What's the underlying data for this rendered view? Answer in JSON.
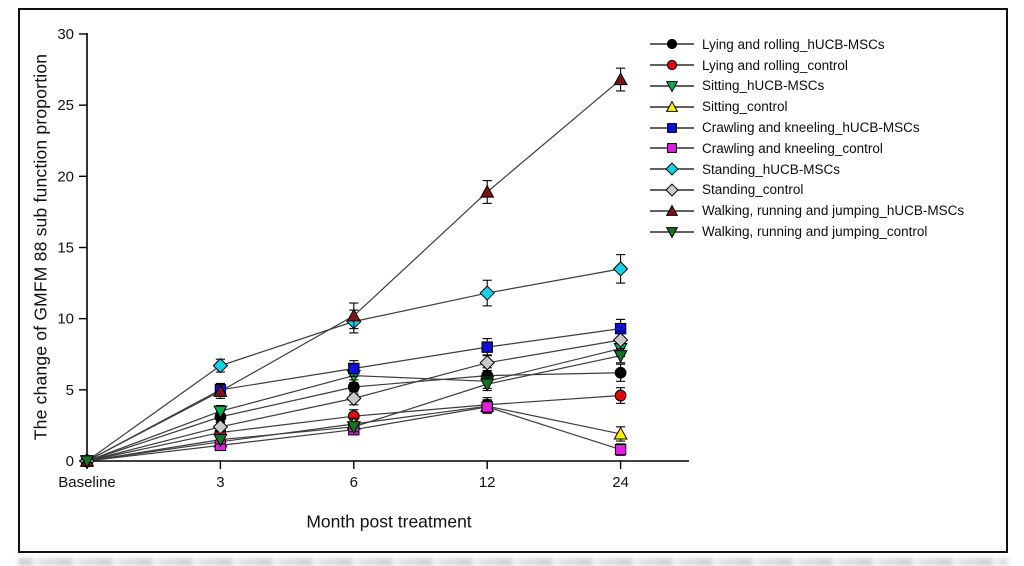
{
  "chart_data": {
    "type": "line",
    "title": "",
    "xlabel": "Month post treatment",
    "ylabel": "The change of GMFM 88 sub function proportion",
    "x_categories": [
      "Baseline",
      "3",
      "6",
      "12",
      "24"
    ],
    "y_ticks": [
      0,
      5,
      10,
      15,
      20,
      25,
      30
    ],
    "ylim": [
      0,
      30
    ],
    "grid": false,
    "error_bars": true,
    "legend_position": "top-right",
    "line_color": "#3d3d3d",
    "series": [
      {
        "name": "Lying and rolling_hUCB-MSCs",
        "marker": "circle",
        "color": "#000000",
        "values": [
          0,
          3.1,
          5.2,
          6.0,
          6.2
        ],
        "errors": [
          0,
          0.4,
          0.5,
          0.55,
          0.6
        ]
      },
      {
        "name": "Lying and rolling_control",
        "marker": "circle",
        "color": "#dd0a0a",
        "values": [
          0,
          2.0,
          3.15,
          3.95,
          4.6
        ],
        "errors": [
          0,
          0.35,
          0.45,
          0.5,
          0.55
        ]
      },
      {
        "name": "Sitting_hUCB-MSCs",
        "marker": "triangle-down",
        "color": "#00b050",
        "values": [
          0,
          3.5,
          6.0,
          5.6,
          7.9
        ],
        "errors": [
          0,
          0.4,
          0.5,
          0.5,
          0.55
        ]
      },
      {
        "name": "Sitting_control",
        "marker": "triangle-up",
        "color": "#ffee00",
        "values": [
          0,
          1.35,
          2.6,
          3.85,
          1.9
        ],
        "errors": [
          0,
          0.3,
          0.4,
          0.45,
          0.5
        ]
      },
      {
        "name": "Crawling and kneeling_hUCB-MSCs",
        "marker": "square",
        "color": "#1010d0",
        "values": [
          0,
          5.0,
          6.5,
          8.0,
          9.3
        ],
        "errors": [
          0,
          0.45,
          0.55,
          0.6,
          0.65
        ]
      },
      {
        "name": "Crawling and kneeling_control",
        "marker": "square",
        "color": "#dd22dd",
        "values": [
          0,
          1.1,
          2.2,
          3.8,
          0.8
        ],
        "errors": [
          0,
          0.3,
          0.35,
          0.45,
          0.4
        ]
      },
      {
        "name": "Standing_hUCB-MSCs",
        "marker": "diamond",
        "color": "#18d1e7",
        "values": [
          0,
          6.7,
          9.8,
          11.8,
          13.5
        ],
        "errors": [
          0,
          0.45,
          0.8,
          0.9,
          1.0
        ]
      },
      {
        "name": "Standing_control",
        "marker": "diamond",
        "color": "#c9c9c9",
        "values": [
          0,
          2.4,
          4.4,
          6.9,
          8.5
        ],
        "errors": [
          0,
          0.35,
          0.45,
          0.55,
          0.6
        ]
      },
      {
        "name": "Walking, running and jumping_hUCB-MSCs",
        "marker": "triangle-up",
        "color": "#7b1418",
        "values": [
          0,
          4.9,
          10.2,
          18.9,
          26.8
        ],
        "errors": [
          0,
          0.5,
          0.9,
          0.8,
          0.8
        ]
      },
      {
        "name": "Walking, running and jumping_control",
        "marker": "triangle-down",
        "color": "#177224",
        "values": [
          0,
          1.5,
          2.4,
          5.4,
          7.4
        ],
        "errors": [
          0,
          0.3,
          0.35,
          0.45,
          0.5
        ]
      }
    ]
  }
}
